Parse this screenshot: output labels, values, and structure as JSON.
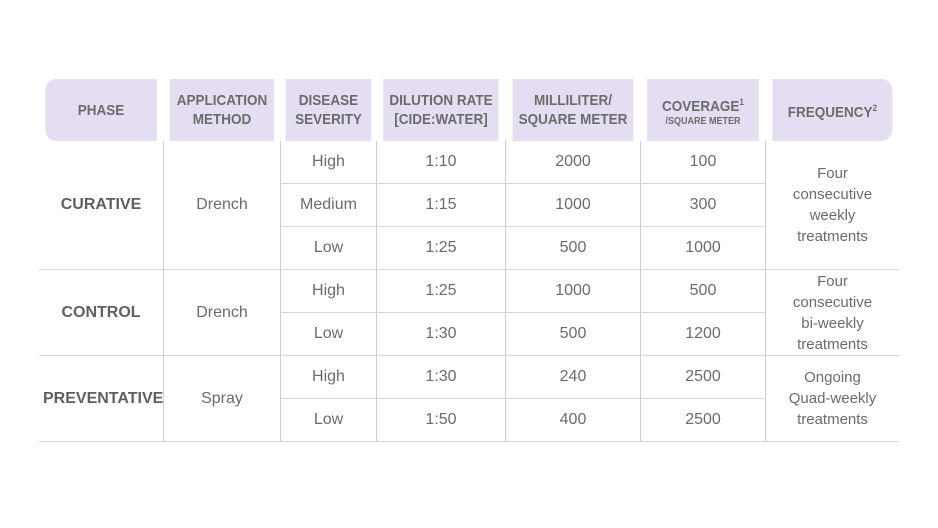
{
  "header": {
    "phase": "PHASE",
    "application_method_l1": "APPLICATION",
    "application_method_l2": "METHOD",
    "disease_severity_l1": "DISEASE",
    "disease_severity_l2": "SEVERITY",
    "dilution_rate_l1": "DILUTION RATE",
    "dilution_rate_l2": "[CIDE:WATER]",
    "milliliter_l1": "MILLILITER/",
    "milliliter_l2": "SQUARE METER",
    "coverage_l1": "COVERAGE",
    "coverage_sup": "1",
    "coverage_l2": "/SQUARE METER",
    "frequency": "FREQUENCY",
    "frequency_sup": "2"
  },
  "groups": [
    {
      "phase": "CURATIVE",
      "method": "Drench",
      "frequency_lines": [
        "Four",
        "consecutive",
        "weekly",
        "treatments"
      ],
      "rows": [
        {
          "severity": "High",
          "dilution": "1:10",
          "ml": "2000",
          "coverage": "100"
        },
        {
          "severity": "Medium",
          "dilution": "1:15",
          "ml": "1000",
          "coverage": "300"
        },
        {
          "severity": "Low",
          "dilution": "1:25",
          "ml": "500",
          "coverage": "1000"
        }
      ]
    },
    {
      "phase": "CONTROL",
      "method": "Drench",
      "frequency_lines": [
        "Four",
        "consecutive",
        "bi-weekly",
        "treatments"
      ],
      "rows": [
        {
          "severity": "High",
          "dilution": "1:25",
          "ml": "1000",
          "coverage": "500"
        },
        {
          "severity": "Low",
          "dilution": "1:30",
          "ml": "500",
          "coverage": "1200"
        }
      ]
    },
    {
      "phase": "PREVENTATIVE",
      "method": "Spray",
      "frequency_lines": [
        "Ongoing",
        "Quad-weekly",
        "treatments"
      ],
      "rows": [
        {
          "severity": "High",
          "dilution": "1:30",
          "ml": "240",
          "coverage": "2500"
        },
        {
          "severity": "Low",
          "dilution": "1:50",
          "ml": "400",
          "coverage": "2500"
        }
      ]
    }
  ],
  "colors": {
    "header_bg": "#e5def3",
    "text": "#6b6b6b",
    "grid": "#d6d6d6"
  }
}
